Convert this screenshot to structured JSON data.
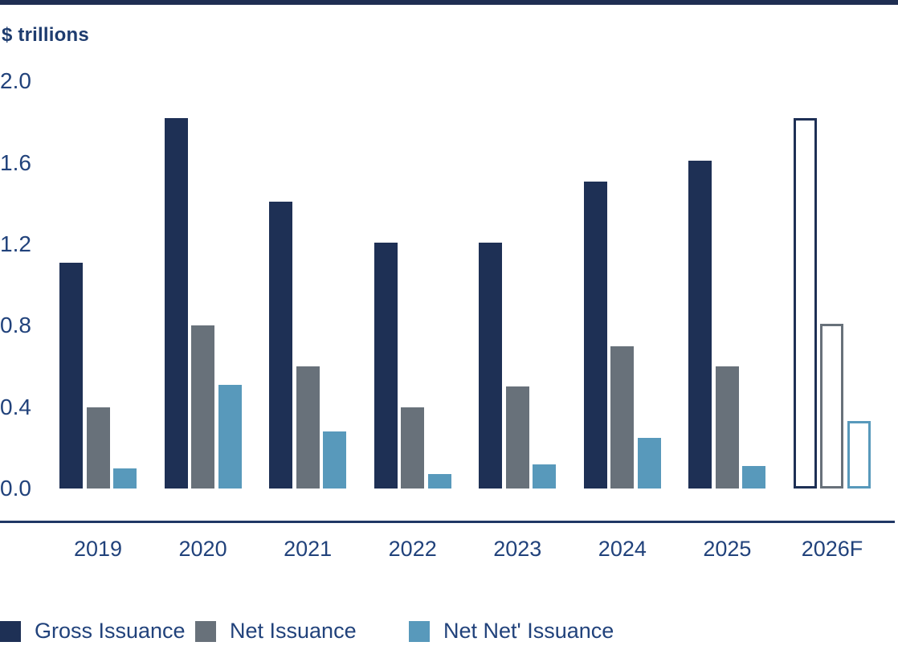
{
  "chart": {
    "title_label": "$ trillions"
  },
  "chart_data": {
    "type": "bar",
    "title": "$ trillions",
    "categories": [
      "2019",
      "2020",
      "2021",
      "2022",
      "2023",
      "2024",
      "2025",
      "2026F"
    ],
    "series": [
      {
        "name": "Gross Issuance",
        "color": "#1e3055",
        "values": [
          1.11,
          1.82,
          1.41,
          1.21,
          1.21,
          1.51,
          1.61,
          1.82
        ]
      },
      {
        "name": "Net Issuance",
        "color": "#68717a",
        "values": [
          0.4,
          0.8,
          0.6,
          0.4,
          0.5,
          0.7,
          0.6,
          0.81
        ]
      },
      {
        "name": "Net Net' Issuance",
        "color": "#5899bb",
        "values": [
          0.1,
          0.51,
          0.28,
          0.07,
          0.12,
          0.25,
          0.11,
          0.33
        ]
      }
    ],
    "forecast_category": "2026F",
    "forecast_style": "outlined-hollow-bars",
    "yticks": [
      "2.0",
      "1.6",
      "1.2",
      "0.8",
      "0.4",
      "0.0"
    ],
    "ylim": [
      0,
      2.0
    ],
    "grid": false,
    "legend_position": "bottom"
  },
  "colors": {
    "background": "#ffffff",
    "top_rule": "#1f2e52",
    "axis_line": "#203765",
    "axis_text": "#21427b",
    "title_text": "#1e3c6f"
  }
}
